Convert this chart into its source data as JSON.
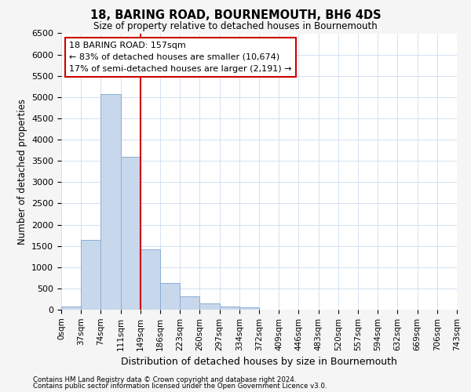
{
  "title1": "18, BARING ROAD, BOURNEMOUTH, BH6 4DS",
  "title2": "Size of property relative to detached houses in Bournemouth",
  "xlabel": "Distribution of detached houses by size in Bournemouth",
  "ylabel": "Number of detached properties",
  "bin_labels": [
    "0sqm",
    "37sqm",
    "74sqm",
    "111sqm",
    "149sqm",
    "186sqm",
    "223sqm",
    "260sqm",
    "297sqm",
    "334sqm",
    "372sqm",
    "409sqm",
    "446sqm",
    "483sqm",
    "520sqm",
    "557sqm",
    "594sqm",
    "632sqm",
    "669sqm",
    "706sqm",
    "743sqm"
  ],
  "bar_values": [
    75,
    1650,
    5075,
    3600,
    1425,
    620,
    305,
    145,
    70,
    50,
    0,
    0,
    0,
    0,
    0,
    0,
    0,
    0,
    0,
    0
  ],
  "bar_color": "#c8d8ec",
  "bar_edge_color": "#8aaed4",
  "vline_x": 4.0,
  "vline_color": "#cc0000",
  "ylim": [
    0,
    6500
  ],
  "yticks": [
    0,
    500,
    1000,
    1500,
    2000,
    2500,
    3000,
    3500,
    4000,
    4500,
    5000,
    5500,
    6000,
    6500
  ],
  "annotation_line1": "18 BARING ROAD: 157sqm",
  "annotation_line2": "← 83% of detached houses are smaller (10,674)",
  "annotation_line3": "17% of semi-detached houses are larger (2,191) →",
  "annotation_box_color": "#ffffff",
  "annotation_box_edge_color": "#cc0000",
  "footer1": "Contains HM Land Registry data © Crown copyright and database right 2024.",
  "footer2": "Contains public sector information licensed under the Open Government Licence v3.0.",
  "bg_color": "#f5f5f5",
  "plot_bg_color": "#ffffff",
  "grid_color": "#ccddee"
}
